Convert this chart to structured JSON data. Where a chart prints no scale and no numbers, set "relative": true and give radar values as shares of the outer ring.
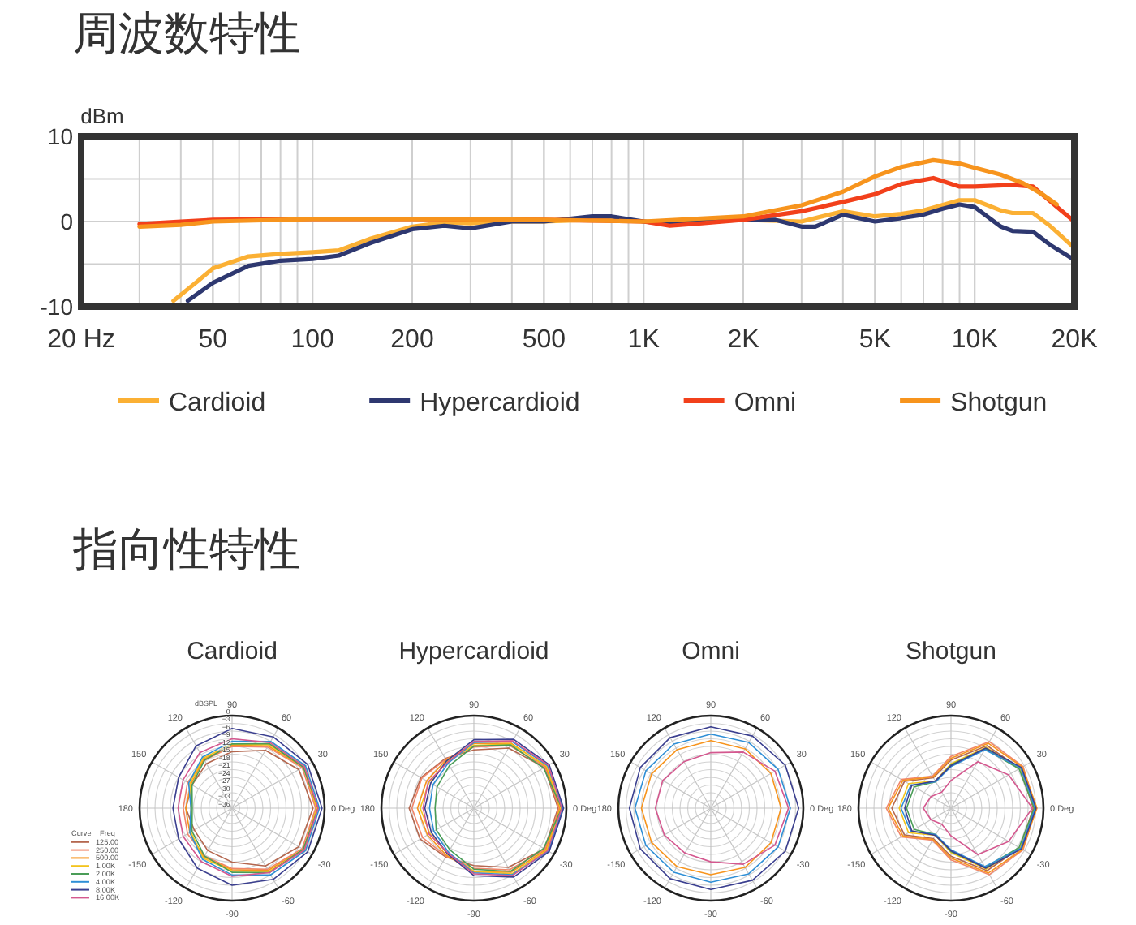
{
  "chart_data": [
    {
      "type": "line",
      "title": "周波数特性",
      "ylabel": "dBm",
      "log": "x",
      "xlim": [
        20,
        20000
      ],
      "xticks": [
        {
          "value": 20,
          "label": "20 Hz"
        },
        50,
        100,
        200,
        500,
        {
          "value": 1000,
          "label": "1K"
        },
        {
          "value": 2000,
          "label": "2K"
        },
        {
          "value": 5000,
          "label": "5K"
        },
        {
          "value": 10000,
          "label": "10K"
        },
        {
          "value": 20000,
          "label": "20K"
        }
      ],
      "ylim": [
        -10,
        10
      ],
      "yticks": [
        -10,
        {
          "value": -5,
          "label": null
        },
        0,
        {
          "value": 5,
          "label": null
        },
        10
      ],
      "grid": true,
      "legend": "bottom",
      "series": [
        {
          "name": "Cardioid",
          "color": "#fbb034",
          "x": [
            38,
            45,
            50,
            64,
            80,
            100,
            120,
            150,
            200,
            250,
            300,
            400,
            500,
            700,
            1000,
            1500,
            2000,
            3000,
            4000,
            5000,
            6000,
            7000,
            9000,
            10000,
            12000,
            13000,
            15000,
            17000,
            20000
          ],
          "values": [
            -9.3,
            -7,
            -5.5,
            -4.1,
            -3.8,
            -3.6,
            -3.4,
            -2,
            -0.6,
            -0.1,
            -0.2,
            0,
            0,
            0.2,
            0,
            0,
            0.2,
            0,
            1.2,
            0.6,
            0.9,
            1.3,
            2.5,
            2.5,
            1.3,
            1.0,
            1.0,
            -0.6,
            -3.1
          ]
        },
        {
          "name": "Hypercardioid",
          "color": "#2e3870",
          "x": [
            42,
            50,
            64,
            80,
            100,
            120,
            150,
            200,
            250,
            300,
            400,
            500,
            700,
            800,
            1000,
            1200,
            1500,
            2000,
            2500,
            3000,
            3300,
            4000,
            5000,
            6000,
            7000,
            8000,
            9000,
            10000,
            12000,
            13000,
            15000,
            17000,
            20000
          ],
          "values": [
            -9.3,
            -7.2,
            -5.2,
            -4.6,
            -4.4,
            -4.0,
            -2.5,
            -0.9,
            -0.5,
            -0.8,
            0,
            0,
            0.6,
            0.6,
            0,
            -0.3,
            0,
            0.2,
            0.2,
            -0.6,
            -0.6,
            0.8,
            0,
            0.4,
            0.8,
            1.5,
            2.0,
            1.7,
            -0.6,
            -1.1,
            -1.2,
            -2.8,
            -4.5
          ]
        },
        {
          "name": "Omni",
          "color": "#f2401b",
          "x": [
            30,
            40,
            50,
            100,
            200,
            500,
            1000,
            1200,
            1500,
            2000,
            3000,
            4000,
            5000,
            6000,
            7500,
            9000,
            10000,
            13000,
            15000,
            17000,
            20000
          ],
          "values": [
            -0.3,
            0,
            0.2,
            0.3,
            0.3,
            0.2,
            0,
            -0.5,
            -0.2,
            0.2,
            1.2,
            2.3,
            3.2,
            4.4,
            5.1,
            4.1,
            4.1,
            4.3,
            4.1,
            2.3,
            0
          ]
        },
        {
          "name": "Shotgun",
          "color": "#f7941d",
          "x": [
            30,
            40,
            50,
            100,
            200,
            500,
            1000,
            2000,
            3000,
            4000,
            5000,
            6000,
            7500,
            9000,
            10000,
            12000,
            14000,
            16000,
            17700
          ],
          "values": [
            -0.6,
            -0.4,
            0,
            0.3,
            0.3,
            0.2,
            0,
            0.6,
            1.9,
            3.5,
            5.3,
            6.4,
            7.2,
            6.8,
            6.3,
            5.5,
            4.5,
            3.2,
            2.0
          ]
        }
      ]
    },
    {
      "type": "radar",
      "title": "Cardioid",
      "annotations": [
        "指向性特性"
      ],
      "categories": [
        "90",
        "60",
        "30",
        "0 Deg",
        "-30",
        "-60",
        "-90",
        "-120",
        "-150",
        "180",
        "150",
        "120"
      ],
      "ylabel": "dBSPL",
      "ylim": [
        -36,
        0
      ],
      "yticks": [
        0,
        {
          "value": -3,
          "label": "−3"
        },
        {
          "value": -6,
          "label": "−6"
        },
        {
          "value": -9,
          "label": "−9"
        },
        {
          "value": -12,
          "label": "−12"
        },
        {
          "value": -15,
          "label": "−15"
        },
        {
          "value": -18,
          "label": "−18"
        },
        {
          "value": -21,
          "label": "−21"
        },
        {
          "value": -24,
          "label": "−24"
        },
        {
          "value": -27,
          "label": "−27"
        },
        {
          "value": -30,
          "label": "−30"
        },
        {
          "value": -33,
          "label": "−33"
        },
        {
          "value": -36,
          "label": "−36"
        }
      ],
      "grid": true,
      "legend": "left",
      "legend_title": "Curve Freq",
      "series": [
        {
          "name": "125.00",
          "color": "#b4674f",
          "values": [
            -14,
            -10,
            -6,
            -4.5,
            -6,
            -10,
            -15,
            -17,
            -19,
            -18,
            -18,
            -16
          ]
        },
        {
          "name": "250.00",
          "color": "#f0866a",
          "values": [
            -12,
            -8.5,
            -4.5,
            -3.5,
            -4.5,
            -8.5,
            -12.5,
            -14.5,
            -16,
            -17,
            -16,
            -14.5
          ]
        },
        {
          "name": "500.00",
          "color": "#f7941d",
          "values": [
            -11.5,
            -8,
            -4,
            -3,
            -4,
            -8,
            -12,
            -14,
            -17,
            -18,
            -17.5,
            -14
          ]
        },
        {
          "name": "1.00K",
          "color": "#f3c31c",
          "values": [
            -11,
            -7.5,
            -3.5,
            -3,
            -3.5,
            -7.5,
            -11.5,
            -13.5,
            -17.5,
            -20,
            -17,
            -13.5
          ]
        },
        {
          "name": "2.00K",
          "color": "#4a9d57",
          "values": [
            -11,
            -7,
            -4,
            -2.5,
            -4,
            -7,
            -11,
            -14.5,
            -18,
            -20.5,
            -18,
            -14.5
          ]
        },
        {
          "name": "4.00K",
          "color": "#2f8fd6",
          "values": [
            -10,
            -6,
            -3,
            -2,
            -3,
            -6,
            -10,
            -13,
            -17,
            -20,
            -16.5,
            -13
          ]
        },
        {
          "name": "8.00K",
          "color": "#3b3f8f",
          "values": [
            -5,
            -4,
            -2,
            -1,
            -2,
            -4,
            -6,
            -9,
            -12,
            -13,
            -12,
            -8
          ]
        },
        {
          "name": "16.00K",
          "color": "#d4588f",
          "values": [
            -9,
            -6.5,
            -3.5,
            -2.5,
            -3.5,
            -7,
            -9.5,
            -12,
            -14,
            -15,
            -14,
            -11
          ]
        }
      ]
    },
    {
      "type": "radar",
      "title": "Hypercardioid",
      "categories": [
        "90",
        "60",
        "30",
        "0 Deg",
        "-30",
        "-60",
        "-90",
        "-120",
        "-150",
        "180",
        "150",
        "120"
      ],
      "relative": true,
      "grid": true,
      "series": [
        {
          "color": "#b4674f",
          "values": [
            0.63,
            0.75,
            0.88,
            0.91,
            0.88,
            0.74,
            0.62,
            0.61,
            0.67,
            0.7,
            0.66,
            0.62
          ]
        },
        {
          "color": "#f0866a",
          "values": [
            0.66,
            0.78,
            0.89,
            0.92,
            0.89,
            0.77,
            0.65,
            0.6,
            0.64,
            0.67,
            0.65,
            0.61
          ]
        },
        {
          "color": "#f7941d",
          "values": [
            0.7,
            0.81,
            0.9,
            0.93,
            0.9,
            0.8,
            0.69,
            0.59,
            0.58,
            0.61,
            0.59,
            0.6
          ]
        },
        {
          "color": "#f3c31c",
          "values": [
            0.68,
            0.8,
            0.91,
            0.94,
            0.91,
            0.82,
            0.68,
            0.57,
            0.55,
            0.58,
            0.56,
            0.58
          ]
        },
        {
          "color": "#4a9d57",
          "values": [
            0.67,
            0.79,
            0.87,
            0.95,
            0.87,
            0.79,
            0.66,
            0.52,
            0.47,
            0.42,
            0.46,
            0.53
          ]
        },
        {
          "color": "#2f8fd6",
          "values": [
            0.71,
            0.83,
            0.92,
            0.96,
            0.93,
            0.83,
            0.7,
            0.55,
            0.5,
            0.48,
            0.51,
            0.56
          ]
        },
        {
          "color": "#3b3f8f",
          "values": [
            0.74,
            0.86,
            0.94,
            0.97,
            0.94,
            0.86,
            0.73,
            0.57,
            0.53,
            0.53,
            0.54,
            0.59
          ]
        },
        {
          "color": "#d4588f",
          "values": [
            0.72,
            0.84,
            0.93,
            0.95,
            0.92,
            0.84,
            0.71,
            0.56,
            0.56,
            0.55,
            0.57,
            0.57
          ]
        }
      ]
    },
    {
      "type": "radar",
      "title": "Omni",
      "categories": [
        "90",
        "60",
        "30",
        "0 Deg",
        "-30",
        "-60",
        "-90",
        "-120",
        "-150",
        "180",
        "150",
        "120"
      ],
      "relative": true,
      "grid": true,
      "series": [
        {
          "color": "#f7941d",
          "values": [
            0.73,
            0.74,
            0.75,
            0.76,
            0.75,
            0.74,
            0.72,
            0.73,
            0.74,
            0.75,
            0.74,
            0.73
          ]
        },
        {
          "color": "#2f8fd6",
          "values": [
            0.8,
            0.82,
            0.84,
            0.86,
            0.84,
            0.82,
            0.8,
            0.8,
            0.81,
            0.82,
            0.81,
            0.8
          ]
        },
        {
          "color": "#3b3f8f",
          "values": [
            0.88,
            0.9,
            0.93,
            0.95,
            0.93,
            0.9,
            0.88,
            0.88,
            0.88,
            0.88,
            0.88,
            0.88
          ]
        },
        {
          "color": "#d4588f",
          "values": [
            0.6,
            0.7,
            0.8,
            0.84,
            0.8,
            0.7,
            0.58,
            0.56,
            0.58,
            0.6,
            0.6,
            0.58
          ]
        }
      ]
    },
    {
      "type": "radar",
      "title": "Shotgun",
      "categories": [
        "90",
        "60",
        "30",
        "0 Deg",
        "-30",
        "-60",
        "-90",
        "-120",
        "-150",
        "180",
        "150",
        "120"
      ],
      "relative": true,
      "grid": true,
      "series": [
        {
          "color": "#b4674f",
          "values": [
            0.52,
            0.78,
            0.86,
            0.89,
            0.86,
            0.78,
            0.52,
            0.38,
            0.58,
            0.64,
            0.58,
            0.38
          ]
        },
        {
          "color": "#f0866a",
          "values": [
            0.56,
            0.83,
            0.9,
            0.92,
            0.9,
            0.83,
            0.56,
            0.4,
            0.62,
            0.7,
            0.62,
            0.4
          ]
        },
        {
          "color": "#f7941d",
          "values": [
            0.54,
            0.81,
            0.89,
            0.93,
            0.89,
            0.81,
            0.54,
            0.39,
            0.6,
            0.68,
            0.6,
            0.39
          ]
        },
        {
          "color": "#f3c31c",
          "values": [
            0.48,
            0.76,
            0.86,
            0.9,
            0.86,
            0.76,
            0.48,
            0.34,
            0.53,
            0.56,
            0.53,
            0.34
          ]
        },
        {
          "color": "#4a9d57",
          "values": [
            0.47,
            0.74,
            0.85,
            0.9,
            0.85,
            0.74,
            0.47,
            0.33,
            0.46,
            0.48,
            0.46,
            0.33
          ]
        },
        {
          "color": "#2f8fd6",
          "values": [
            0.45,
            0.73,
            0.87,
            0.91,
            0.87,
            0.73,
            0.45,
            0.33,
            0.5,
            0.54,
            0.5,
            0.33
          ]
        },
        {
          "color": "#3b3f8f",
          "values": [
            0.46,
            0.75,
            0.88,
            0.92,
            0.88,
            0.75,
            0.46,
            0.34,
            0.49,
            0.5,
            0.49,
            0.34
          ]
        },
        {
          "color": "#d4588f",
          "values": [
            0.3,
            0.58,
            0.72,
            0.88,
            0.72,
            0.58,
            0.3,
            0.2,
            0.25,
            0.3,
            0.25,
            0.2
          ]
        }
      ]
    }
  ]
}
